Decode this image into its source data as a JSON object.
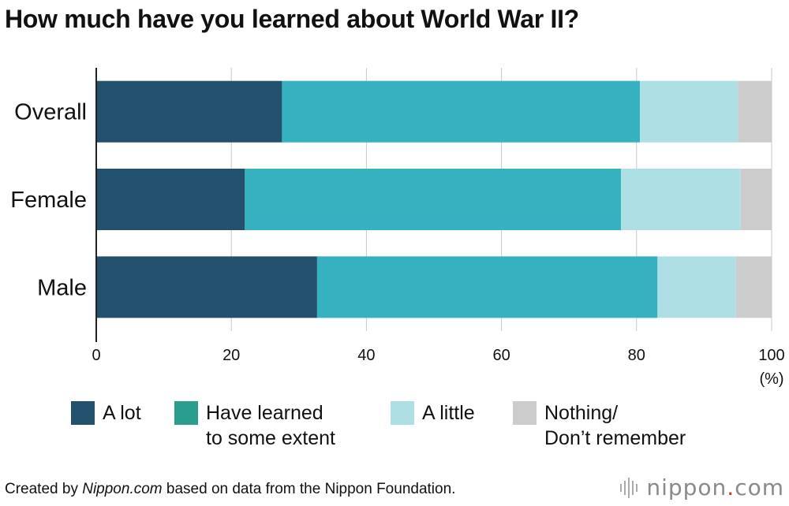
{
  "title": "How much have you learned about World War II?",
  "chart_data": {
    "type": "bar",
    "orientation": "horizontal",
    "stacked": true,
    "categories": [
      "Overall",
      "Female",
      "Male"
    ],
    "series": [
      {
        "name": "A lot",
        "values": [
          27.5,
          22.0,
          32.7
        ],
        "color": "#23506d"
      },
      {
        "name": "Have learned\nto some extent",
        "values": [
          53.0,
          55.7,
          50.4
        ],
        "color": "#35b1c0"
      },
      {
        "name": "A little",
        "values": [
          14.5,
          17.7,
          11.6
        ],
        "color": "#aedfe5"
      },
      {
        "name": "Nothing/\nDon’t remember",
        "values": [
          5.0,
          4.6,
          5.3
        ],
        "color": "#cccccc"
      }
    ],
    "xlim": [
      0,
      100
    ],
    "xticks": [
      "0",
      "20",
      "40",
      "60",
      "80",
      "100"
    ],
    "xunit": "(%)",
    "grid": true,
    "legend_position": "bottom"
  },
  "legend": {
    "colors": [
      "#23506d",
      "#2a9d8f",
      "#aedfe5",
      "#cccccc"
    ]
  },
  "footer": {
    "prefix": "Created by ",
    "source_name": "Nippon.com",
    "suffix": " based on data from the Nippon Foundation."
  },
  "logo": {
    "name": "nippon",
    "dot": ".",
    "tld": "com"
  }
}
